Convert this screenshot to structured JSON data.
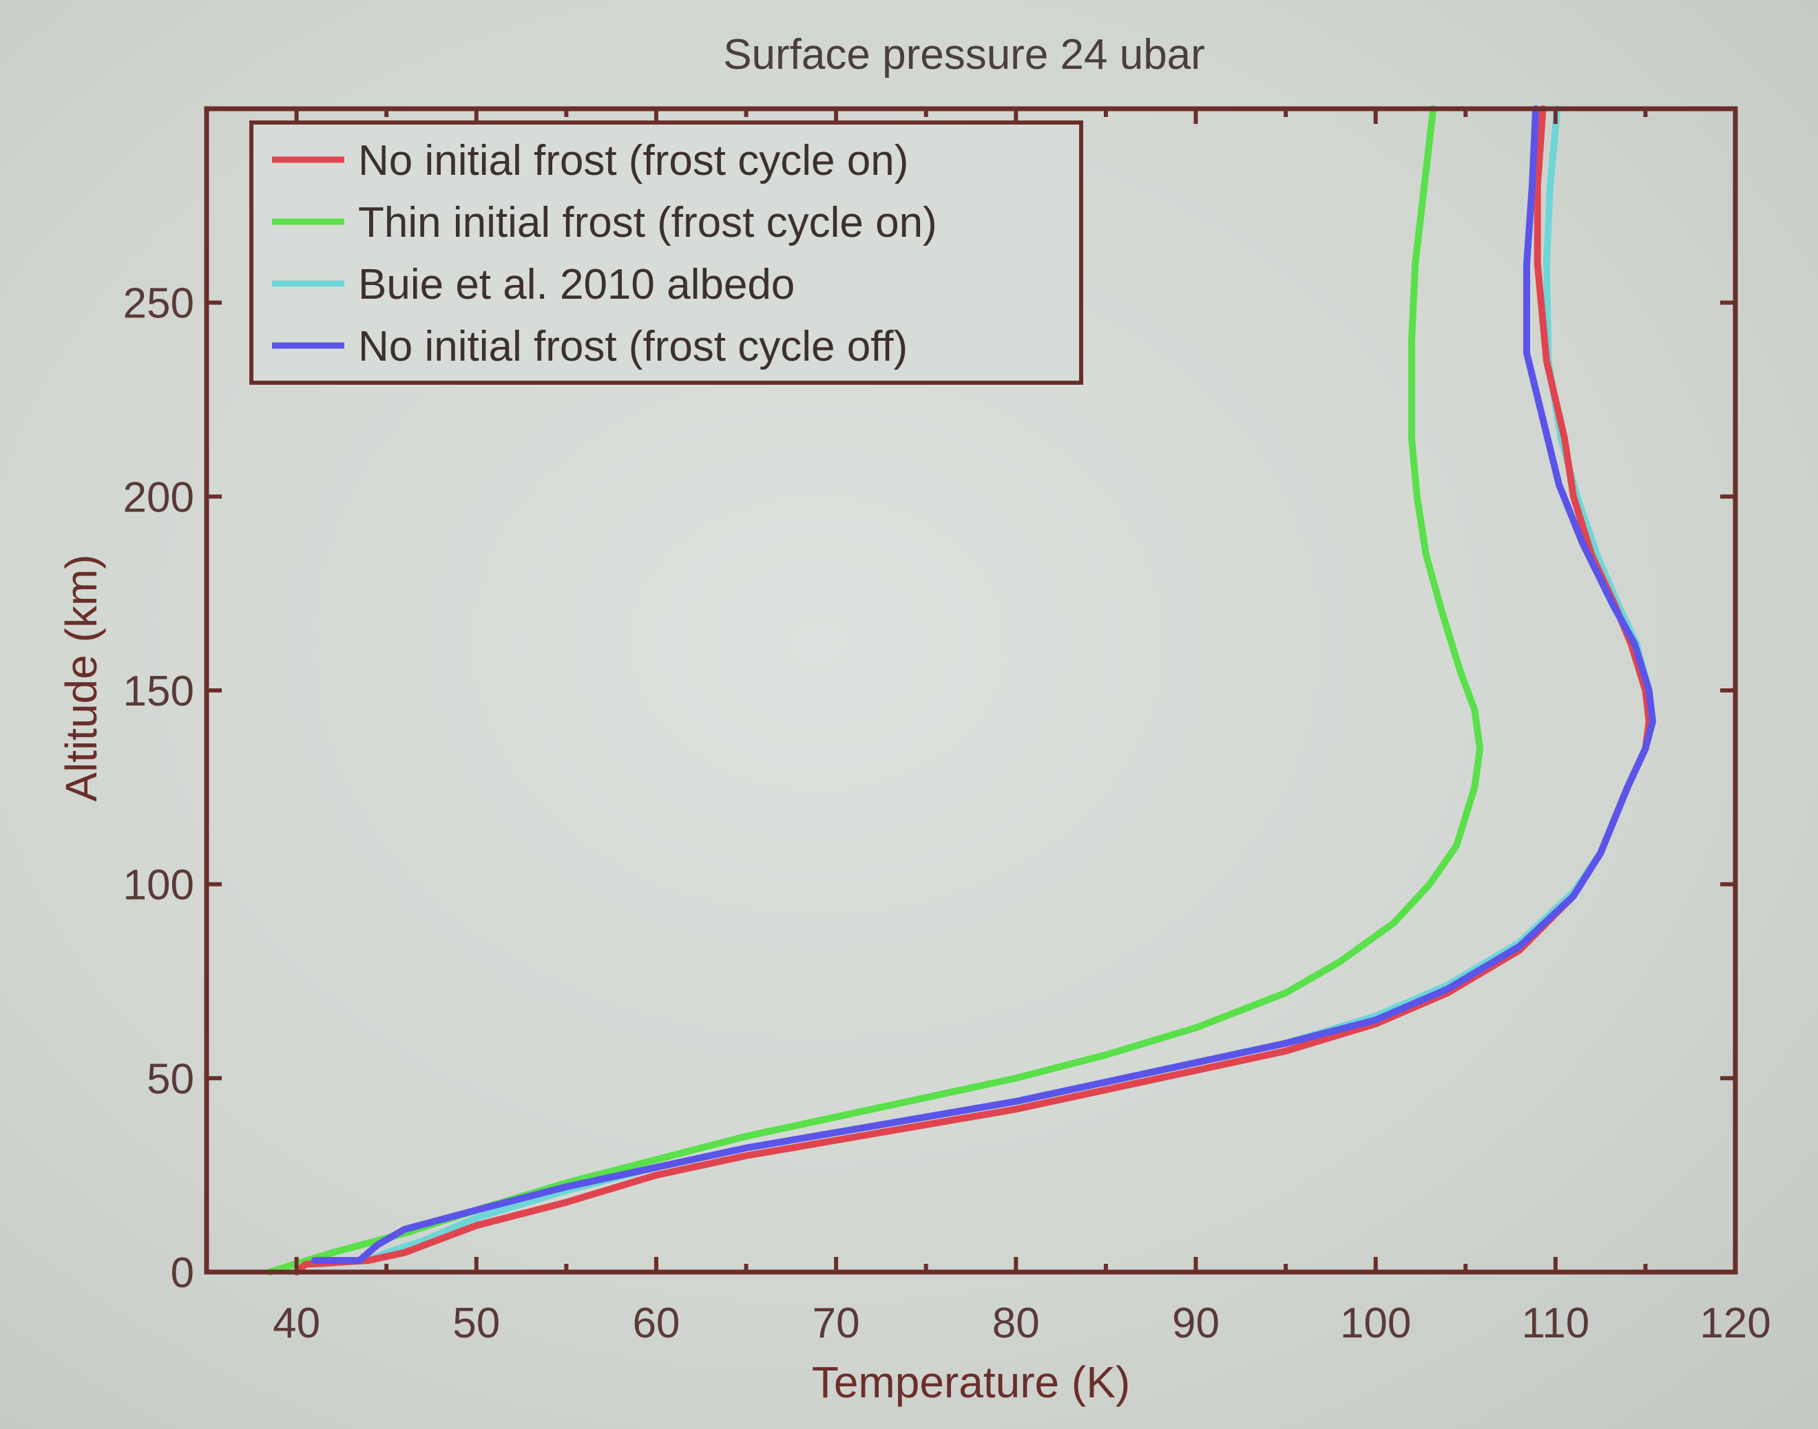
{
  "chart_data": {
    "type": "line",
    "title": "Surface pressure 24 ubar",
    "xlabel": "Temperature (K)",
    "ylabel": "Altitude (km)",
    "xlim": [
      35,
      120
    ],
    "ylim": [
      0,
      300
    ],
    "xticks": [
      40,
      50,
      60,
      70,
      80,
      90,
      100,
      110,
      120
    ],
    "yticks": [
      0,
      50,
      100,
      150,
      200,
      250
    ],
    "grid": false,
    "legend_position": "top-left",
    "colors": {
      "axis": "#6a2f2b",
      "red": "#e0454f",
      "green": "#59e04a",
      "cyan": "#6fd6d8",
      "blue": "#5a55e8"
    },
    "series": [
      {
        "name": "No initial frost (frost cycle on)",
        "color": "#e0454f",
        "x": [
          40,
          40.5,
          44,
          46,
          50,
          55,
          60,
          65,
          70,
          75,
          80,
          85,
          90,
          95,
          100,
          104,
          108,
          111,
          112.5,
          114,
          115,
          115.2,
          115,
          114.2,
          113.3,
          112,
          111,
          110.5,
          109.5,
          109,
          109,
          109.3
        ],
        "y": [
          0,
          2,
          3,
          5,
          12,
          18,
          25,
          30,
          34,
          38,
          42,
          47,
          52,
          57,
          64,
          72,
          83,
          97,
          108,
          125,
          135,
          142,
          150,
          162,
          172,
          185,
          200,
          215,
          235,
          260,
          280,
          300
        ]
      },
      {
        "name": "Thin initial frost (frost cycle on)",
        "color": "#59e04a",
        "x": [
          38.5,
          42,
          46,
          50,
          55,
          60,
          65,
          70,
          75,
          80,
          85,
          90,
          95,
          98,
          101,
          103,
          104.5,
          105.5,
          105.8,
          105.5,
          104.7,
          103.7,
          102.8,
          102.3,
          102,
          102,
          102.2,
          102.7,
          103.2
        ],
        "y": [
          0,
          5,
          10,
          16,
          23,
          29,
          35,
          40,
          45,
          50,
          56,
          63,
          72,
          80,
          90,
          100,
          110,
          125,
          135,
          145,
          155,
          170,
          185,
          200,
          215,
          240,
          260,
          280,
          300
        ]
      },
      {
        "name": "Buie et al. 2010 albedo",
        "color": "#6fd6d8",
        "x": [
          41,
          44,
          45,
          47,
          50,
          55,
          60,
          65,
          70,
          75,
          80,
          85,
          90,
          95,
          100,
          104,
          108,
          111,
          112.5,
          114,
          115,
          115.4,
          115.2,
          114.5,
          113.5,
          112.3,
          111.2,
          110.3,
          109.6,
          109.5,
          109.7,
          110.1
        ],
        "y": [
          2,
          3,
          5,
          8,
          14,
          21,
          27,
          32,
          36,
          40,
          44,
          49,
          54,
          59,
          66,
          74,
          85,
          98,
          108,
          125,
          135,
          142,
          150,
          162,
          172,
          185,
          200,
          215,
          235,
          260,
          280,
          300
        ]
      },
      {
        "name": "No initial frost (frost cycle off)",
        "color": "#5a55e8",
        "x": [
          41,
          43.5,
          44.5,
          46,
          50,
          55,
          60,
          65,
          70,
          75,
          80,
          85,
          90,
          95,
          100,
          104,
          108,
          111,
          112.5,
          114,
          115,
          115.4,
          115.2,
          114.4,
          113.2,
          111.5,
          110.2,
          109.4,
          108.4,
          108.4,
          108.7,
          108.9
        ],
        "y": [
          3,
          3,
          7,
          11,
          16,
          22,
          27,
          32,
          36,
          40,
          44,
          49,
          54,
          59,
          65,
          73,
          84,
          97,
          108,
          125,
          135,
          142,
          150,
          162,
          172,
          188,
          203,
          218,
          237,
          260,
          280,
          300
        ]
      }
    ]
  }
}
